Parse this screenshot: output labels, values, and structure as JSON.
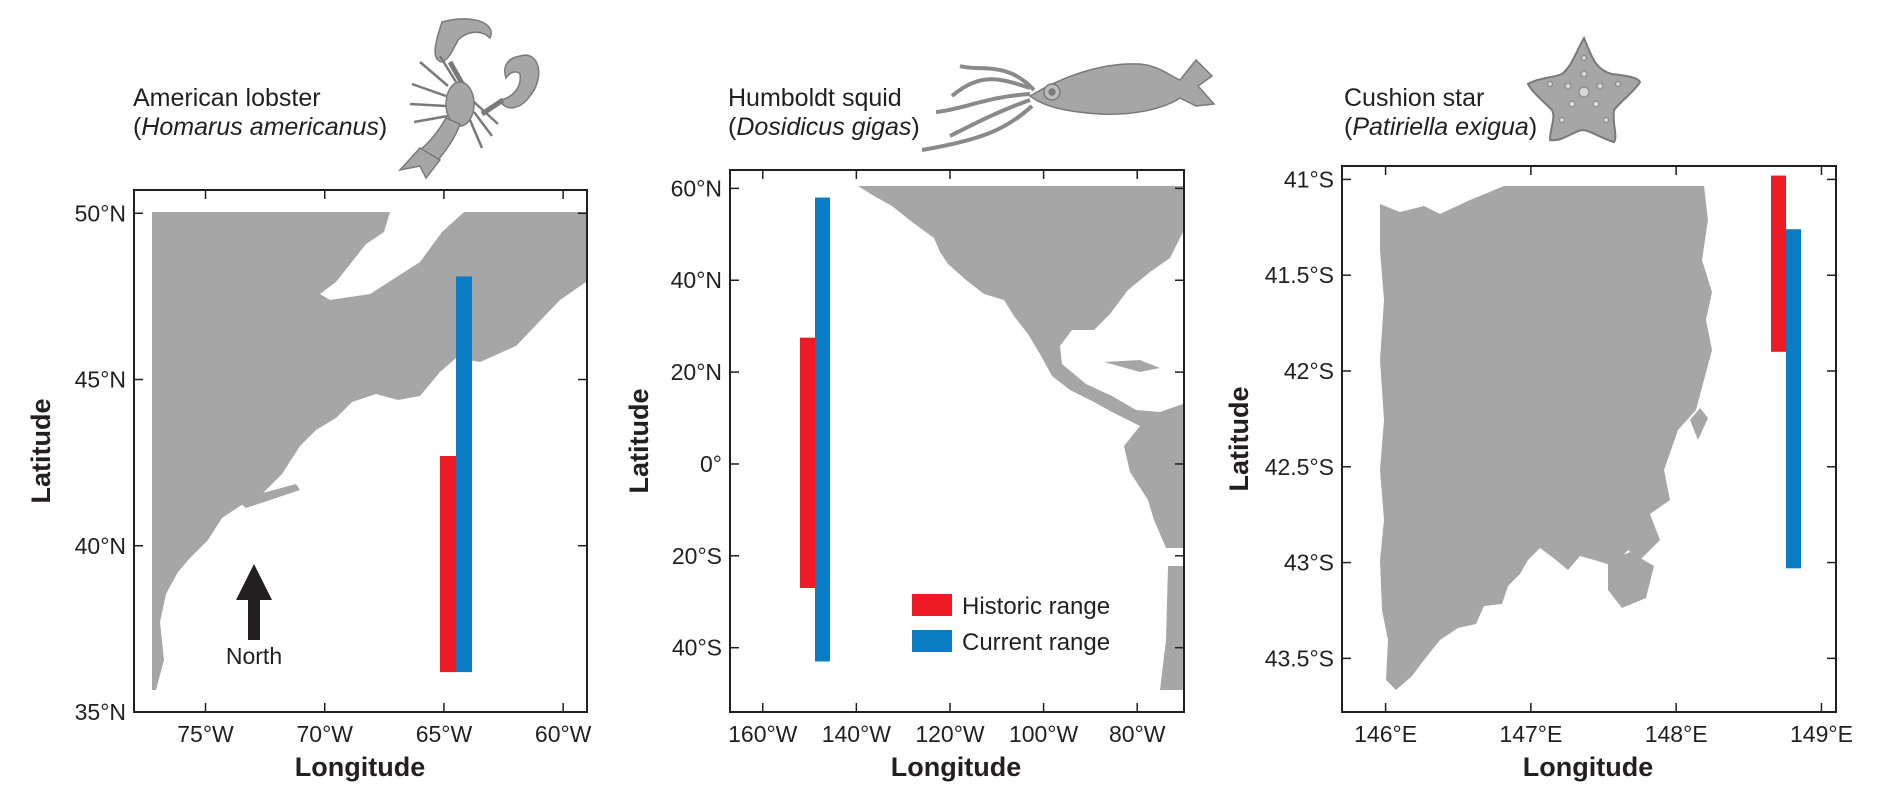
{
  "colors": {
    "historic": "#ed1c24",
    "current": "#0a7cc4",
    "land": "#a6a6a6",
    "frame": "#231f20"
  },
  "legend": {
    "historic_label": "Historic range",
    "current_label": "Current range"
  },
  "panels": [
    {
      "species_common": "American lobster",
      "species_latin": "Homarus americanus",
      "icon": "lobster-icon",
      "xlabel": "Longitude",
      "ylabel": "Latitude",
      "north_label": "North"
    },
    {
      "species_common": "Humboldt squid",
      "species_latin": "Dosidicus gigas",
      "icon": "squid-icon",
      "xlabel": "Longitude",
      "ylabel": "Latitude"
    },
    {
      "species_common": "Cushion star",
      "species_latin": "Patiriella exigua",
      "icon": "starfish-icon",
      "xlabel": "Longitude",
      "ylabel": "Latitude"
    }
  ],
  "chart_data": [
    {
      "type": "bar",
      "title": "American lobster (Homarus americanus)",
      "xlabel": "Longitude",
      "ylabel": "Latitude",
      "xlim": [
        -78,
        -59
      ],
      "ylim": [
        35,
        50.7
      ],
      "x_ticks": [
        -75,
        -70,
        -65,
        -60
      ],
      "x_tick_labels": [
        "75°W",
        "70°W",
        "65°W",
        "60°W"
      ],
      "y_ticks": [
        35,
        40,
        45,
        50
      ],
      "y_tick_labels": [
        "35°N",
        "40°N",
        "45°N",
        "50°N"
      ],
      "series": [
        {
          "name": "Historic range",
          "range": [
            36.2,
            42.7
          ]
        },
        {
          "name": "Current range",
          "range": [
            36.2,
            48.1
          ]
        }
      ]
    },
    {
      "type": "bar",
      "title": "Humboldt squid (Dosidicus gigas)",
      "xlabel": "Longitude",
      "ylabel": "Latitude",
      "xlim": [
        -167,
        -70
      ],
      "ylim": [
        -54,
        64
      ],
      "x_ticks": [
        -160,
        -140,
        -120,
        -100,
        -80
      ],
      "x_tick_labels": [
        "160°W",
        "140°W",
        "120°W",
        "100°W",
        "80°W"
      ],
      "y_ticks": [
        60,
        40,
        20,
        0,
        -20,
        -40
      ],
      "y_tick_labels": [
        "60°N",
        "40°N",
        "20°N",
        "0°",
        "20°S",
        "40°S"
      ],
      "series": [
        {
          "name": "Historic range",
          "range": [
            -27,
            27.5
          ]
        },
        {
          "name": "Current range",
          "range": [
            -43,
            58
          ]
        }
      ]
    },
    {
      "type": "bar",
      "title": "Cushion star (Patiriella exigua)",
      "xlabel": "Longitude",
      "ylabel": "Latitude",
      "xlim": [
        145.7,
        149.1
      ],
      "ylim": [
        -43.78,
        -40.93
      ],
      "x_ticks": [
        146,
        147,
        148,
        149
      ],
      "x_tick_labels": [
        "146°E",
        "147°E",
        "148°E",
        "149°E"
      ],
      "y_ticks": [
        -41,
        -41.5,
        -42,
        -42.5,
        -43,
        -43.5
      ],
      "y_tick_labels": [
        "41°S",
        "41.5°S",
        "42°S",
        "42.5°S",
        "43°S",
        "43.5°S"
      ],
      "series": [
        {
          "name": "Historic range",
          "range": [
            -41.9,
            -40.98
          ]
        },
        {
          "name": "Current range",
          "range": [
            -43.03,
            -41.26
          ]
        }
      ]
    }
  ]
}
